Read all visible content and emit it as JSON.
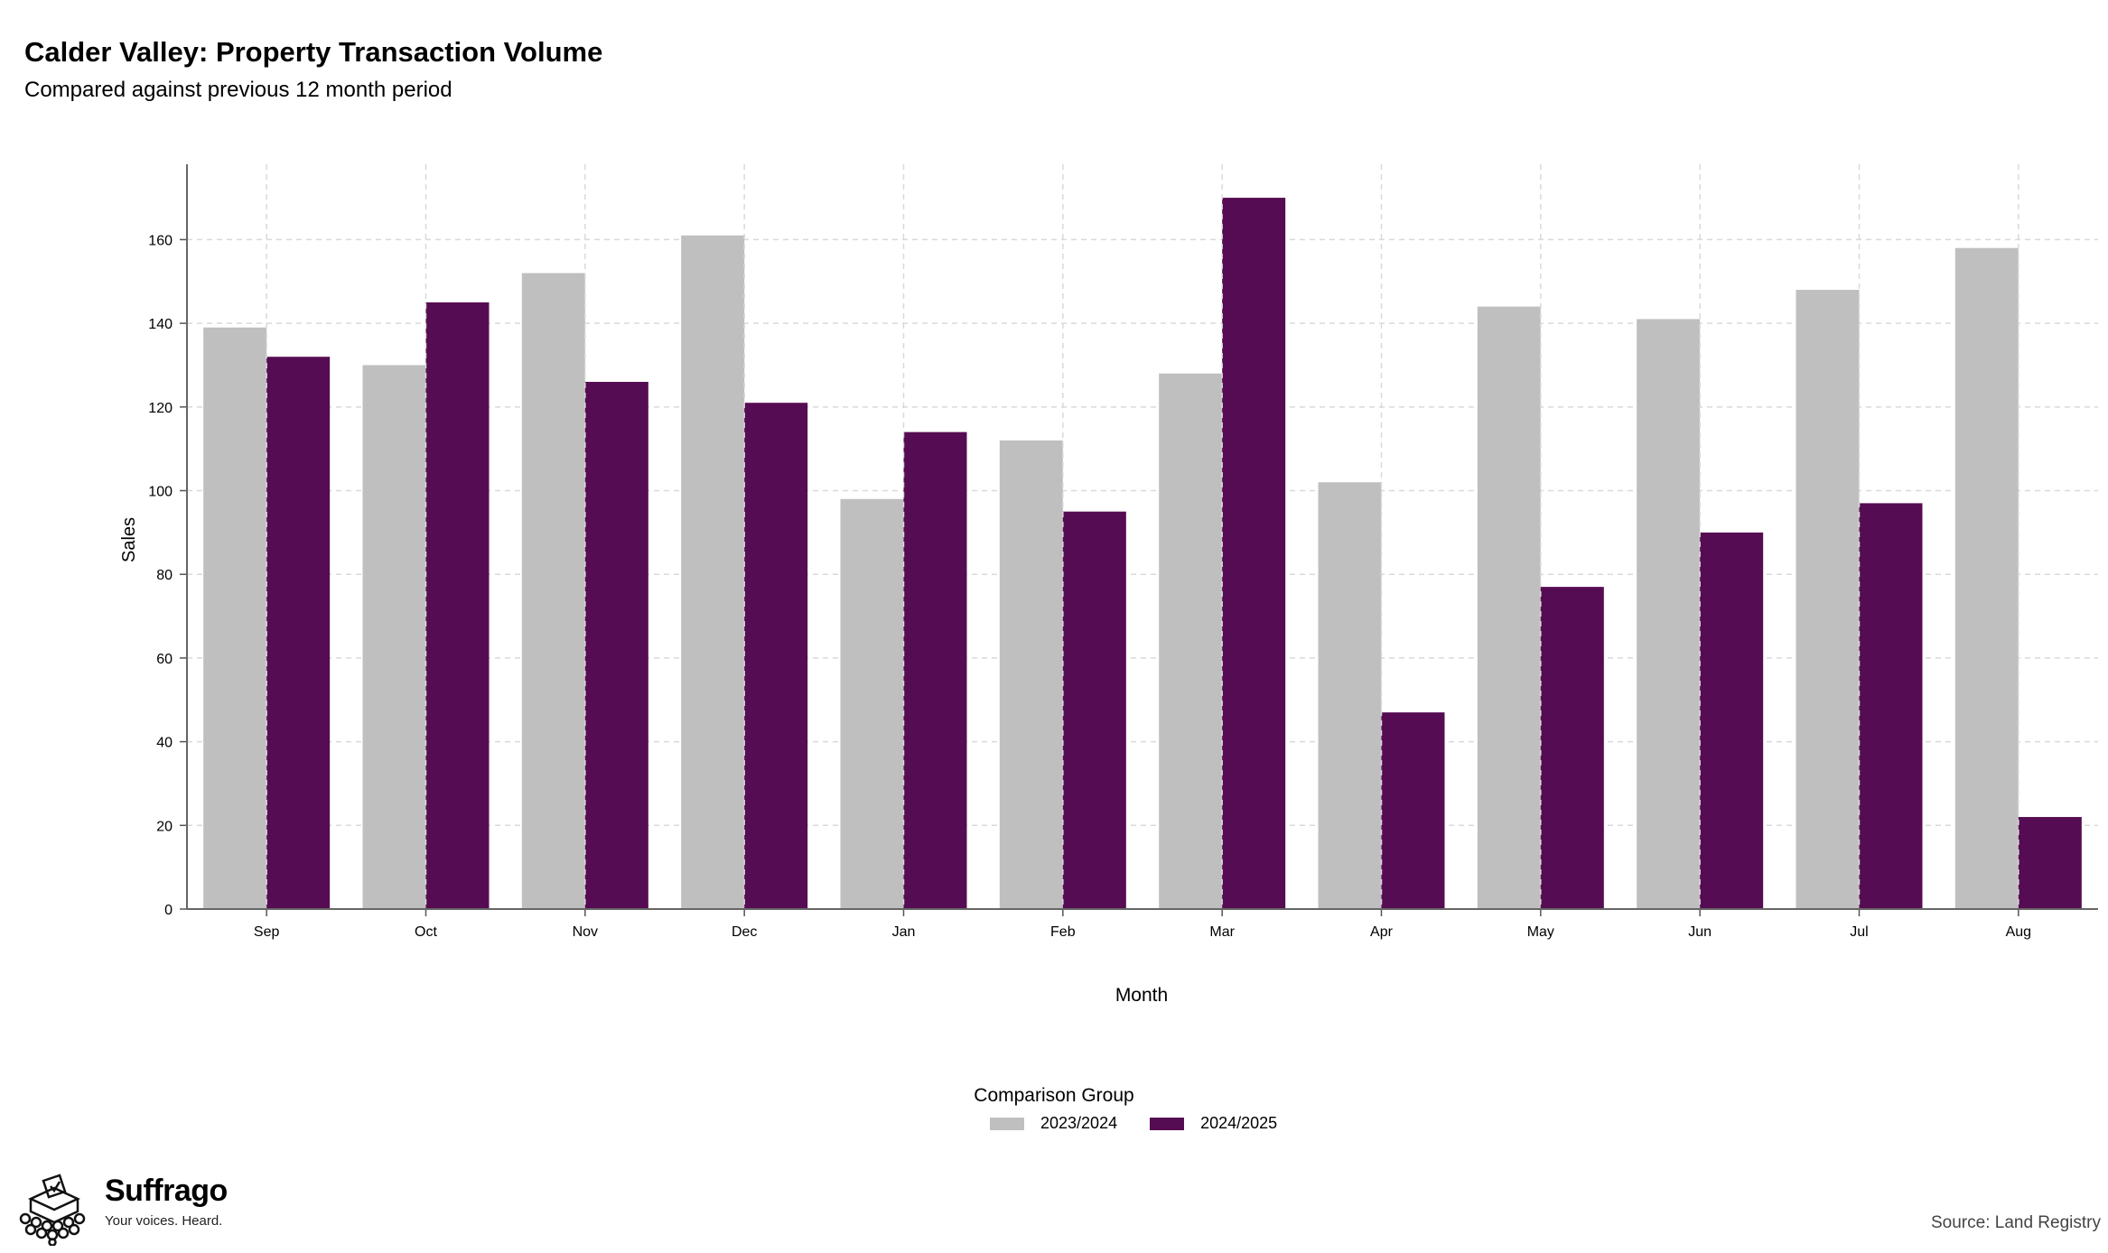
{
  "chart_data": {
    "type": "bar",
    "title": "Calder Valley: Property Transaction Volume",
    "subtitle": "Compared against previous 12 month period",
    "xlabel": "Month",
    "ylabel": "Sales",
    "categories": [
      "Sep",
      "Oct",
      "Nov",
      "Dec",
      "Jan",
      "Feb",
      "Mar",
      "Apr",
      "May",
      "Jun",
      "Jul",
      "Aug"
    ],
    "series": [
      {
        "name": "2023/2024",
        "color": "#bfbfbf",
        "values": [
          139,
          130,
          152,
          161,
          98,
          112,
          128,
          102,
          144,
          141,
          148,
          158
        ]
      },
      {
        "name": "2024/2025",
        "color": "#560c52",
        "values": [
          132,
          145,
          126,
          121,
          114,
          95,
          170,
          47,
          77,
          90,
          97,
          22
        ]
      }
    ],
    "ylim": [
      0,
      178
    ],
    "yticks": [
      0,
      20,
      40,
      60,
      80,
      100,
      120,
      140,
      160
    ],
    "grid": true,
    "legend": {
      "title": "Comparison Group",
      "position": "bottom-center"
    }
  },
  "branding": {
    "name": "Suffrago",
    "tagline": "Your voices. Heard."
  },
  "source": "Source: Land Registry"
}
